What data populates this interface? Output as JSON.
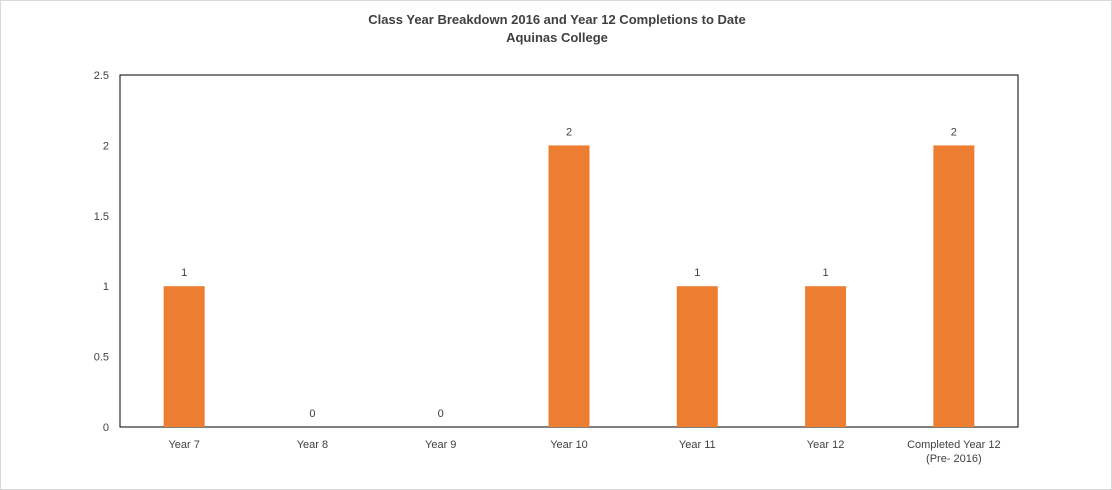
{
  "chart_data": {
    "type": "bar",
    "title": "Class Year Breakdown 2016 and Year 12 Completions to Date",
    "subtitle": "Aquinas College",
    "categories": [
      [
        "Year 7"
      ],
      [
        "Year 8"
      ],
      [
        "Year 9"
      ],
      [
        "Year 10"
      ],
      [
        "Year 11"
      ],
      [
        "Year 12"
      ],
      [
        "Completed Year 12",
        "(Pre- 2016)"
      ]
    ],
    "values": [
      1,
      0,
      0,
      2,
      1,
      1,
      2
    ],
    "data_labels": [
      "1",
      "0",
      "0",
      "2",
      "1",
      "1",
      "2"
    ],
    "y_ticks": [
      "0",
      "0.5",
      "1",
      "1.5",
      "2",
      "2.5"
    ],
    "ylim": [
      0,
      2.5
    ],
    "xlabel": "",
    "ylabel": "",
    "grid": false,
    "legend": "none",
    "bar_color": "#ED7D31"
  }
}
